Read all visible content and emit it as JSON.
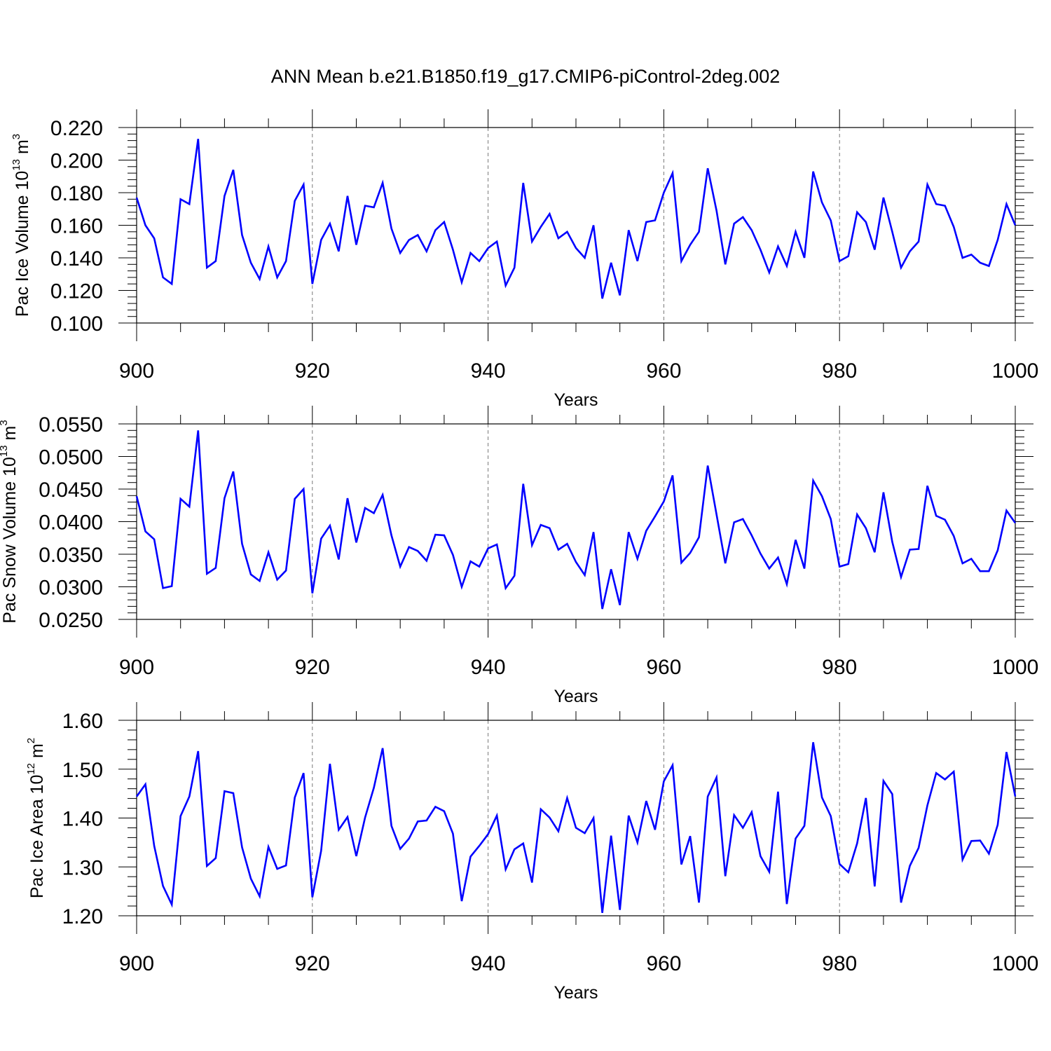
{
  "title": "ANN Mean b.e21.B1850.f19_g17.CMIP6-piControl-2deg.002",
  "colors": {
    "line": "#0000ff",
    "axis": "#000000",
    "grid": "#777777"
  },
  "chart_data": [
    {
      "type": "line",
      "ylabel": {
        "main": "Pac Ice Volume 10",
        "sup": "13",
        "unit": " m",
        "unit_sup": "3"
      },
      "xlabel": "Years",
      "xlim": [
        900,
        1000
      ],
      "ylim": [
        0.1,
        0.22
      ],
      "x_ticks": [
        900,
        920,
        940,
        960,
        980,
        1000
      ],
      "x_tick_labels": [
        "900",
        "920",
        "940",
        "960",
        "980",
        "1000"
      ],
      "y_ticks": [
        0.1,
        0.12,
        0.14,
        0.16,
        0.18,
        0.2,
        0.22
      ],
      "y_tick_labels": [
        "0.100",
        "0.120",
        "0.140",
        "0.160",
        "0.180",
        "0.200",
        "0.220"
      ],
      "y_minor_step": 0.004,
      "grid": "vertical-dashed",
      "x_start": 900,
      "values": [
        0.177,
        0.16,
        0.152,
        0.128,
        0.124,
        0.176,
        0.173,
        0.213,
        0.134,
        0.138,
        0.178,
        0.194,
        0.154,
        0.137,
        0.127,
        0.147,
        0.128,
        0.138,
        0.175,
        0.185,
        0.124,
        0.151,
        0.161,
        0.144,
        0.178,
        0.148,
        0.172,
        0.171,
        0.186,
        0.158,
        0.143,
        0.151,
        0.154,
        0.144,
        0.157,
        0.162,
        0.145,
        0.125,
        0.143,
        0.138,
        0.146,
        0.15,
        0.123,
        0.134,
        0.186,
        0.15,
        0.159,
        0.167,
        0.152,
        0.156,
        0.146,
        0.14,
        0.16,
        0.115,
        0.137,
        0.117,
        0.157,
        0.138,
        0.162,
        0.163,
        0.18,
        0.192,
        0.138,
        0.148,
        0.156,
        0.195,
        0.169,
        0.136,
        0.161,
        0.165,
        0.157,
        0.145,
        0.131,
        0.147,
        0.135,
        0.156,
        0.14,
        0.193,
        0.174,
        0.163,
        0.138,
        0.141,
        0.168,
        0.162,
        0.145,
        0.177,
        0.156,
        0.134,
        0.144,
        0.15,
        0.185,
        0.173,
        0.172,
        0.159,
        0.14,
        0.142,
        0.137,
        0.135,
        0.151,
        0.173,
        0.16
      ]
    },
    {
      "type": "line",
      "ylabel": {
        "main": "Pac Snow Volume 10",
        "sup": "13",
        "unit": " m",
        "unit_sup": "3"
      },
      "xlabel": "Years",
      "xlim": [
        900,
        1000
      ],
      "ylim": [
        0.025,
        0.055
      ],
      "x_ticks": [
        900,
        920,
        940,
        960,
        980,
        1000
      ],
      "x_tick_labels": [
        "900",
        "920",
        "940",
        "960",
        "980",
        "1000"
      ],
      "y_ticks": [
        0.025,
        0.03,
        0.035,
        0.04,
        0.045,
        0.05,
        0.055
      ],
      "y_tick_labels": [
        "0.0250",
        "0.0300",
        "0.0350",
        "0.0400",
        "0.0450",
        "0.0500",
        "0.0550"
      ],
      "y_minor_step": 0.001,
      "grid": "vertical-dashed",
      "x_start": 900,
      "values": [
        0.0439,
        0.0385,
        0.0373,
        0.0298,
        0.0301,
        0.0435,
        0.0423,
        0.054,
        0.032,
        0.0329,
        0.0436,
        0.0477,
        0.0366,
        0.0319,
        0.0309,
        0.0353,
        0.0311,
        0.0325,
        0.0435,
        0.045,
        0.029,
        0.0374,
        0.0394,
        0.0342,
        0.0436,
        0.0368,
        0.0421,
        0.0413,
        0.0441,
        0.0379,
        0.0331,
        0.0361,
        0.0355,
        0.034,
        0.038,
        0.0379,
        0.0349,
        0.03,
        0.0339,
        0.0331,
        0.0359,
        0.0365,
        0.0298,
        0.0317,
        0.0458,
        0.0364,
        0.0395,
        0.039,
        0.0357,
        0.0366,
        0.0338,
        0.0318,
        0.0384,
        0.0266,
        0.0327,
        0.0272,
        0.0384,
        0.0343,
        0.0386,
        0.0408,
        0.0431,
        0.0471,
        0.0337,
        0.0352,
        0.0376,
        0.0486,
        0.0411,
        0.0336,
        0.0399,
        0.0404,
        0.0379,
        0.0351,
        0.0328,
        0.0345,
        0.0304,
        0.0372,
        0.0328,
        0.0463,
        0.0439,
        0.0404,
        0.0331,
        0.0335,
        0.0411,
        0.039,
        0.0353,
        0.0445,
        0.0369,
        0.0315,
        0.0357,
        0.0358,
        0.0455,
        0.0409,
        0.0403,
        0.0378,
        0.0336,
        0.0343,
        0.0324,
        0.0324,
        0.0356,
        0.0417,
        0.0398
      ]
    },
    {
      "type": "line",
      "ylabel": {
        "main": "Pac Ice Area 10",
        "sup": "12",
        "unit": " m",
        "unit_sup": "2"
      },
      "xlabel": "Years",
      "xlim": [
        900,
        1000
      ],
      "ylim": [
        1.2,
        1.6
      ],
      "x_ticks": [
        900,
        920,
        940,
        960,
        980,
        1000
      ],
      "x_tick_labels": [
        "900",
        "920",
        "940",
        "960",
        "980",
        "1000"
      ],
      "y_ticks": [
        1.2,
        1.3,
        1.4,
        1.5,
        1.6
      ],
      "y_tick_labels": [
        "1.20",
        "1.30",
        "1.40",
        "1.50",
        "1.60"
      ],
      "y_minor_step": 0.02,
      "grid": "vertical-dashed",
      "x_start": 900,
      "values": [
        1.444,
        1.469,
        1.343,
        1.261,
        1.223,
        1.404,
        1.444,
        1.537,
        1.302,
        1.318,
        1.455,
        1.451,
        1.34,
        1.276,
        1.24,
        1.341,
        1.296,
        1.303,
        1.442,
        1.492,
        1.238,
        1.333,
        1.511,
        1.376,
        1.402,
        1.322,
        1.401,
        1.462,
        1.543,
        1.384,
        1.337,
        1.358,
        1.393,
        1.395,
        1.423,
        1.414,
        1.368,
        1.23,
        1.321,
        1.343,
        1.367,
        1.405,
        1.295,
        1.336,
        1.348,
        1.268,
        1.418,
        1.401,
        1.373,
        1.441,
        1.38,
        1.369,
        1.4,
        1.206,
        1.364,
        1.212,
        1.405,
        1.35,
        1.435,
        1.376,
        1.475,
        1.508,
        1.305,
        1.363,
        1.227,
        1.444,
        1.483,
        1.281,
        1.406,
        1.38,
        1.412,
        1.322,
        1.29,
        1.454,
        1.224,
        1.358,
        1.384,
        1.555,
        1.442,
        1.404,
        1.306,
        1.289,
        1.348,
        1.441,
        1.26,
        1.476,
        1.449,
        1.227,
        1.302,
        1.339,
        1.426,
        1.492,
        1.479,
        1.495,
        1.315,
        1.353,
        1.354,
        1.327,
        1.386,
        1.535,
        1.444
      ]
    }
  ]
}
